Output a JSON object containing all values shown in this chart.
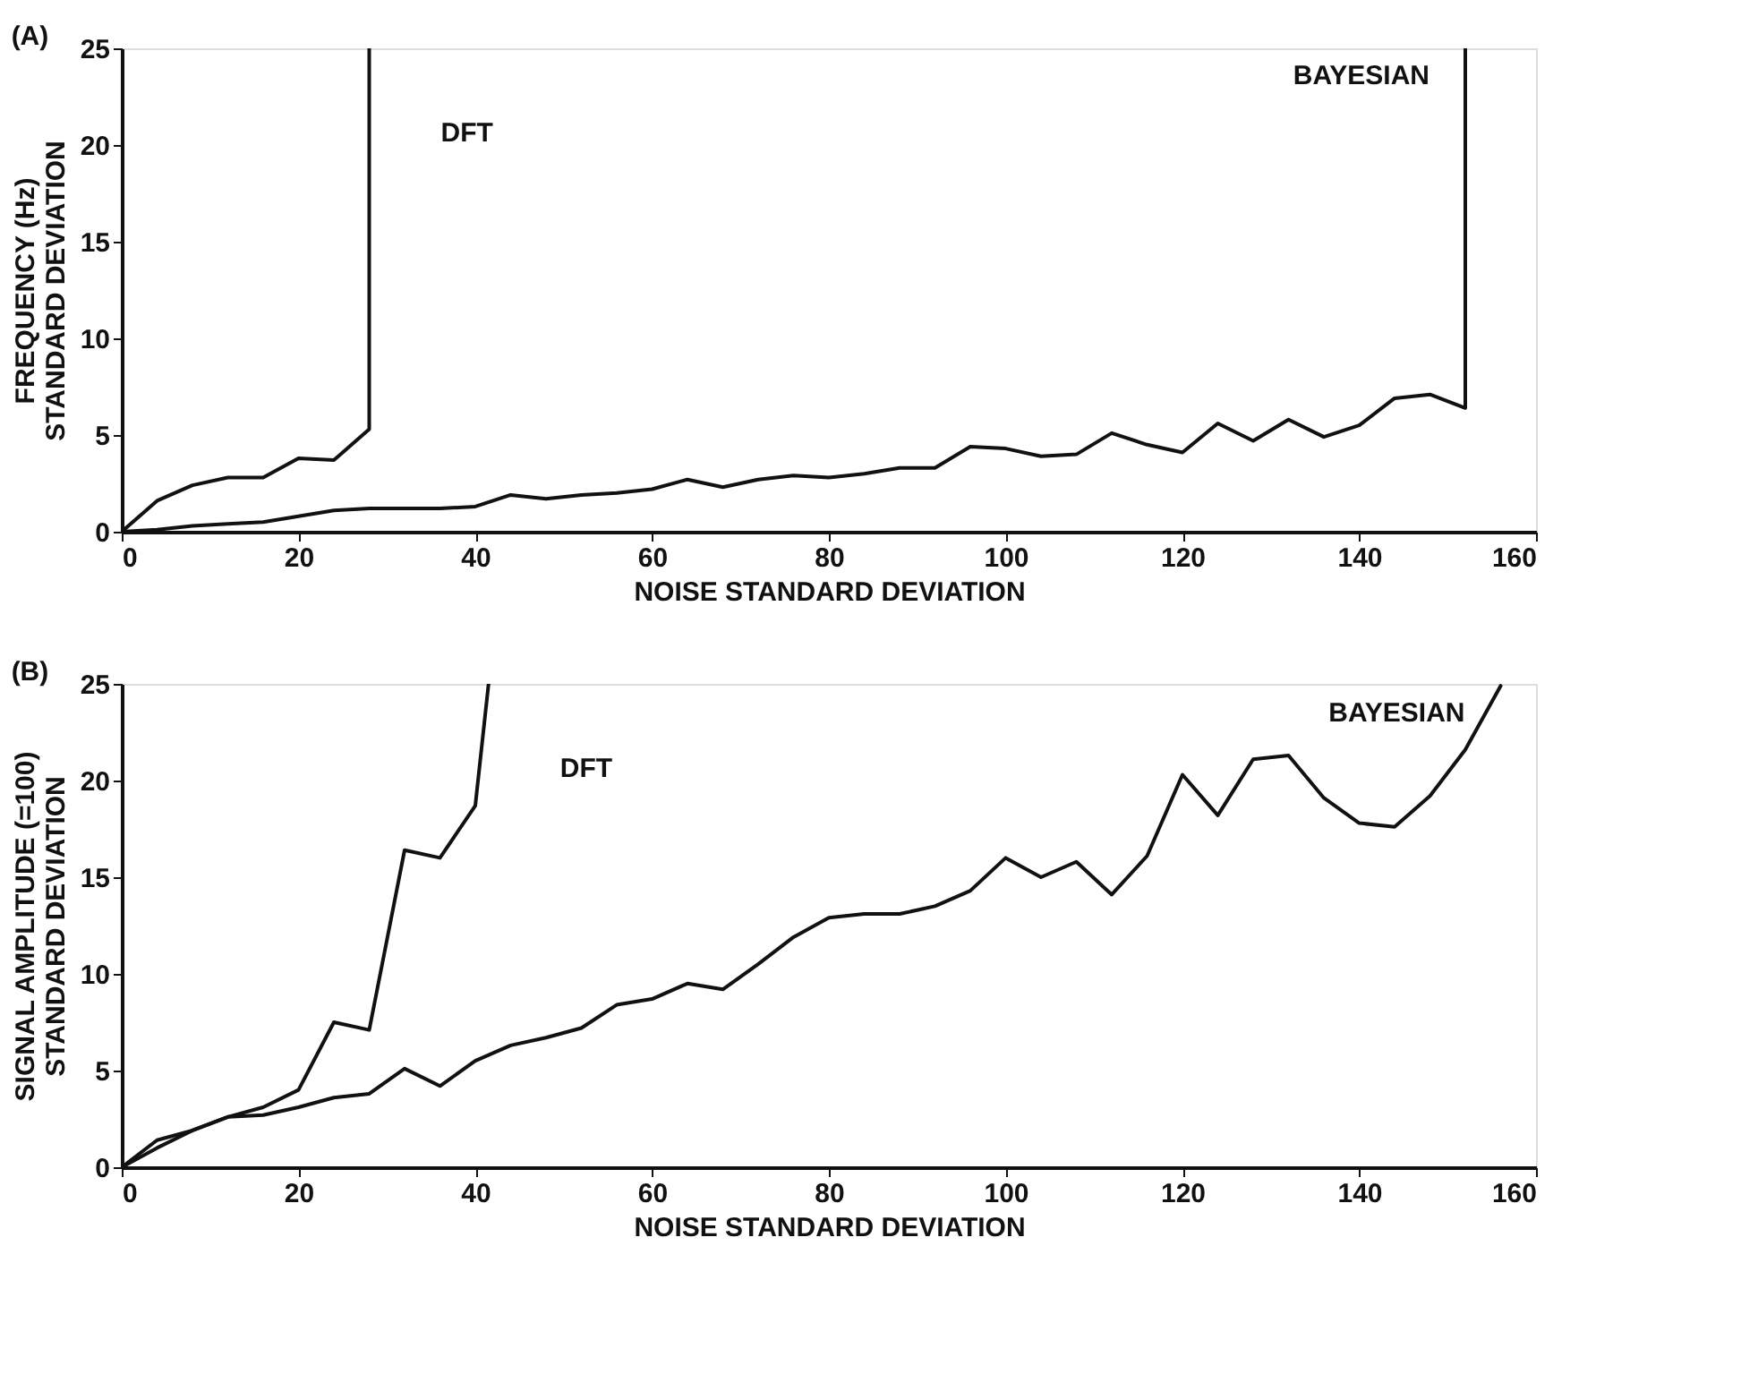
{
  "chart_data": [
    {
      "type": "line",
      "title": "(A)",
      "xlabel": "NOISE STANDARD DEVIATION",
      "ylabel": "FREQUENCY (Hz)\nSTANDARD DEVIATION",
      "xlim": [
        0,
        160
      ],
      "ylim": [
        0,
        25
      ],
      "xticks": [
        0,
        20,
        40,
        60,
        80,
        100,
        120,
        140,
        160
      ],
      "yticks": [
        0,
        5,
        10,
        15,
        20,
        25
      ],
      "grid": false,
      "legend": false,
      "marker": "none",
      "line_style": "solid",
      "series": [
        {
          "name": "DFT",
          "color": "#111111",
          "x": [
            0,
            4,
            8,
            12,
            16,
            20,
            24,
            28,
            28
          ],
          "values": [
            0,
            1.6,
            2.4,
            2.8,
            2.8,
            3.8,
            3.7,
            5.3,
            25
          ]
        },
        {
          "name": "BAYESIAN",
          "color": "#111111",
          "x": [
            0,
            4,
            8,
            12,
            16,
            20,
            24,
            28,
            32,
            36,
            40,
            44,
            48,
            52,
            56,
            60,
            64,
            68,
            72,
            76,
            80,
            84,
            88,
            92,
            96,
            100,
            104,
            108,
            112,
            116,
            120,
            124,
            128,
            132,
            136,
            140,
            144,
            148,
            152,
            152
          ],
          "values": [
            0,
            0.1,
            0.3,
            0.4,
            0.5,
            0.8,
            1.1,
            1.2,
            1.2,
            1.2,
            1.3,
            1.9,
            1.7,
            1.9,
            2.0,
            2.2,
            2.7,
            2.3,
            2.7,
            2.9,
            2.8,
            3.0,
            3.3,
            3.3,
            4.4,
            4.3,
            3.9,
            4.0,
            5.1,
            4.5,
            4.1,
            5.6,
            4.7,
            5.8,
            4.9,
            5.5,
            6.9,
            7.1,
            6.4,
            25
          ]
        }
      ]
    },
    {
      "type": "line",
      "title": "(B)",
      "xlabel": "NOISE STANDARD DEVIATION",
      "ylabel": "SIGNAL AMPLITUDE (=100)\nSTANDARD DEVIATION",
      "xlim": [
        0,
        160
      ],
      "ylim": [
        0,
        25
      ],
      "xticks": [
        0,
        20,
        40,
        60,
        80,
        100,
        120,
        140,
        160
      ],
      "yticks": [
        0,
        5,
        10,
        15,
        20,
        25
      ],
      "grid": false,
      "legend": false,
      "marker": "none",
      "line_style": "solid",
      "series": [
        {
          "name": "DFT",
          "color": "#111111",
          "x": [
            0,
            4,
            8,
            12,
            16,
            20,
            24,
            28,
            32,
            36,
            40,
            41.5
          ],
          "values": [
            0,
            1.0,
            1.9,
            2.6,
            3.1,
            4.0,
            7.5,
            7.1,
            16.4,
            16.0,
            18.7,
            25
          ]
        },
        {
          "name": "BAYESIAN",
          "color": "#111111",
          "x": [
            0,
            4,
            8,
            12,
            16,
            20,
            24,
            28,
            32,
            36,
            40,
            44,
            48,
            52,
            56,
            60,
            64,
            68,
            72,
            76,
            80,
            84,
            88,
            92,
            96,
            100,
            104,
            108,
            112,
            116,
            120,
            124,
            128,
            132,
            136,
            140,
            144,
            148,
            152,
            156
          ],
          "values": [
            0,
            1.4,
            1.9,
            2.6,
            2.7,
            3.1,
            3.6,
            3.8,
            5.1,
            4.2,
            5.5,
            6.3,
            6.7,
            7.2,
            8.4,
            8.7,
            9.5,
            9.2,
            10.5,
            11.9,
            12.9,
            13.1,
            13.1,
            13.5,
            14.3,
            16.0,
            15.0,
            15.8,
            14.1,
            16.1,
            20.3,
            18.2,
            21.1,
            21.3,
            19.1,
            17.8,
            17.6,
            19.2,
            21.6,
            24.9
          ]
        }
      ]
    }
  ]
}
